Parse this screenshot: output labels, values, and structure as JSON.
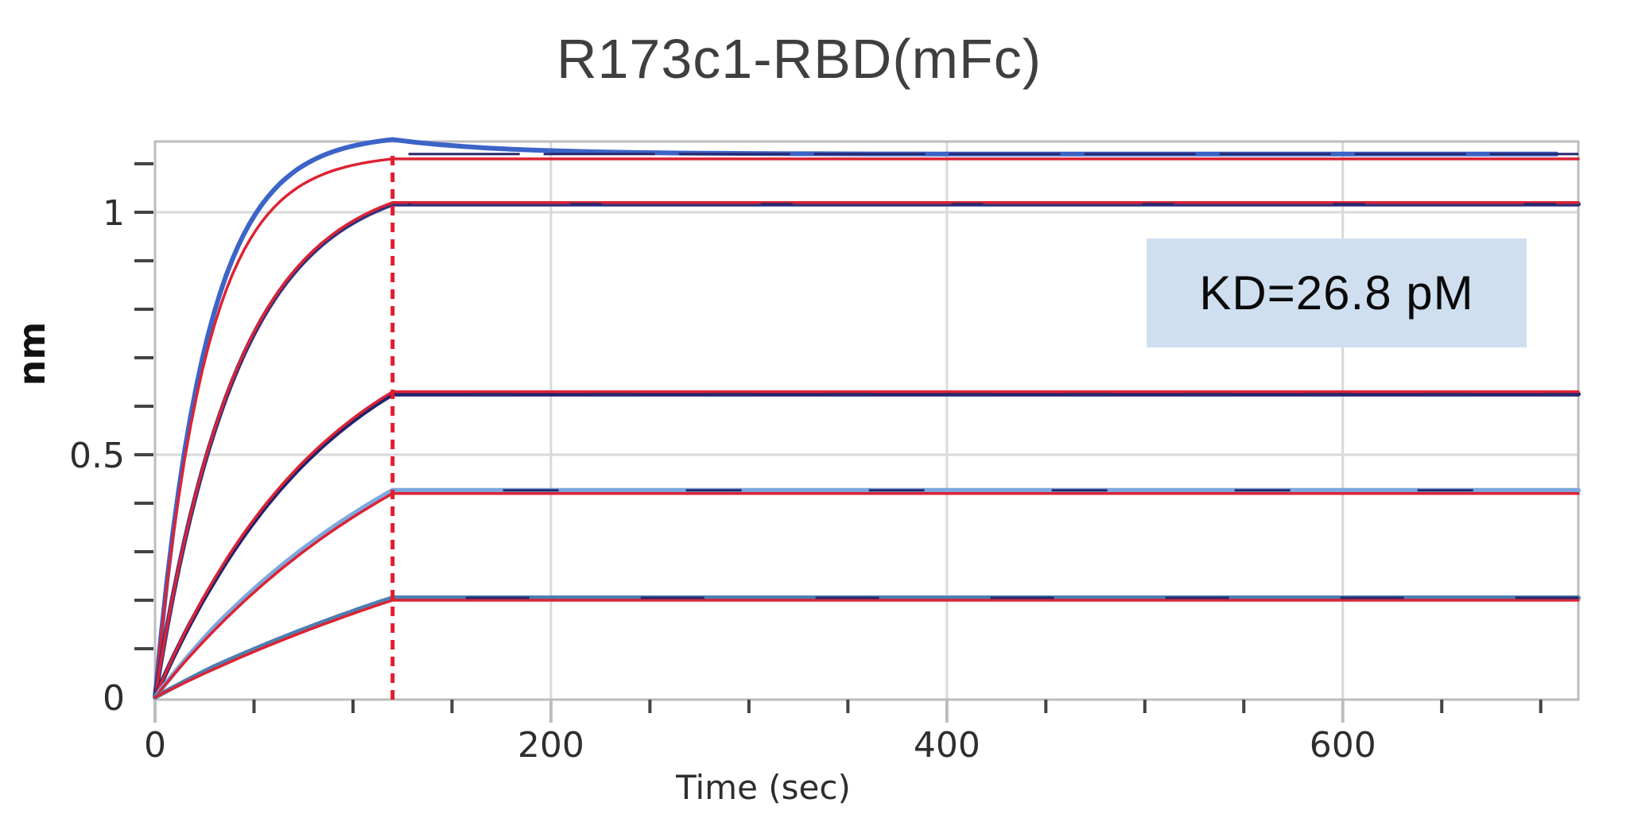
{
  "title": "R173c1-RBD(mFc)",
  "annotation": {
    "text": "KD=26.8 pM",
    "bg_color": "#cfdff0"
  },
  "colors": {
    "fit_red": "#dc2334",
    "dashed_boundary_red": "#e31b2c",
    "grid_gray": "#d9d9d9",
    "frame_gray": "#bdbdbd",
    "tick_mark": "#444444",
    "axis_text": "#2e2e2e",
    "title_text": "#3f3f3f",
    "noise_navy": "#28286e",
    "annotation_text": "#0a0a0a"
  },
  "chart_data": {
    "type": "line",
    "title": "R173c1-RBD(mFc)",
    "xlabel": "Time (sec)",
    "ylabel": "nm",
    "xlim": [
      0,
      719
    ],
    "ylim": [
      0,
      1.16
    ],
    "x_ticks": [
      0,
      200,
      400,
      600
    ],
    "x_tick_labels": [
      "0",
      "200",
      "400",
      "600"
    ],
    "x_minor_step_sec": 50,
    "y_ticks": [
      0,
      0.5,
      1
    ],
    "y_tick_labels": [
      "0",
      "0.5",
      "1"
    ],
    "y_minor_step_nm": 0.1,
    "grid": true,
    "legend": "none",
    "annotation": "KD=26.8 pM",
    "association_end_sec": 120,
    "fit_color": "#dc2334",
    "series": [
      {
        "name": "curve-1",
        "raw_color": "#3c64c8",
        "tau_s": 26,
        "response_at_120s_nm": 1.15,
        "fit_response_at_120s_nm": 1.11,
        "plateau_nm": 1.12
      },
      {
        "name": "curve-2",
        "raw_color": "#31317e",
        "tau_s": 42,
        "response_at_120s_nm": 1.02,
        "plateau_nm": 1.02
      },
      {
        "name": "curve-3",
        "raw_color": "#22226e",
        "tau_s": 88,
        "response_at_120s_nm": 0.63,
        "plateau_nm": 0.63
      },
      {
        "name": "curve-4",
        "raw_color": "#7ca8de",
        "tau_s": 150,
        "response_at_120s_nm": 0.42,
        "plateau_nm": 0.42
      },
      {
        "name": "curve-5",
        "raw_color": "#4d7fb0",
        "tau_s": 280,
        "response_at_120s_nm": 0.2,
        "plateau_nm": 0.2
      }
    ]
  }
}
